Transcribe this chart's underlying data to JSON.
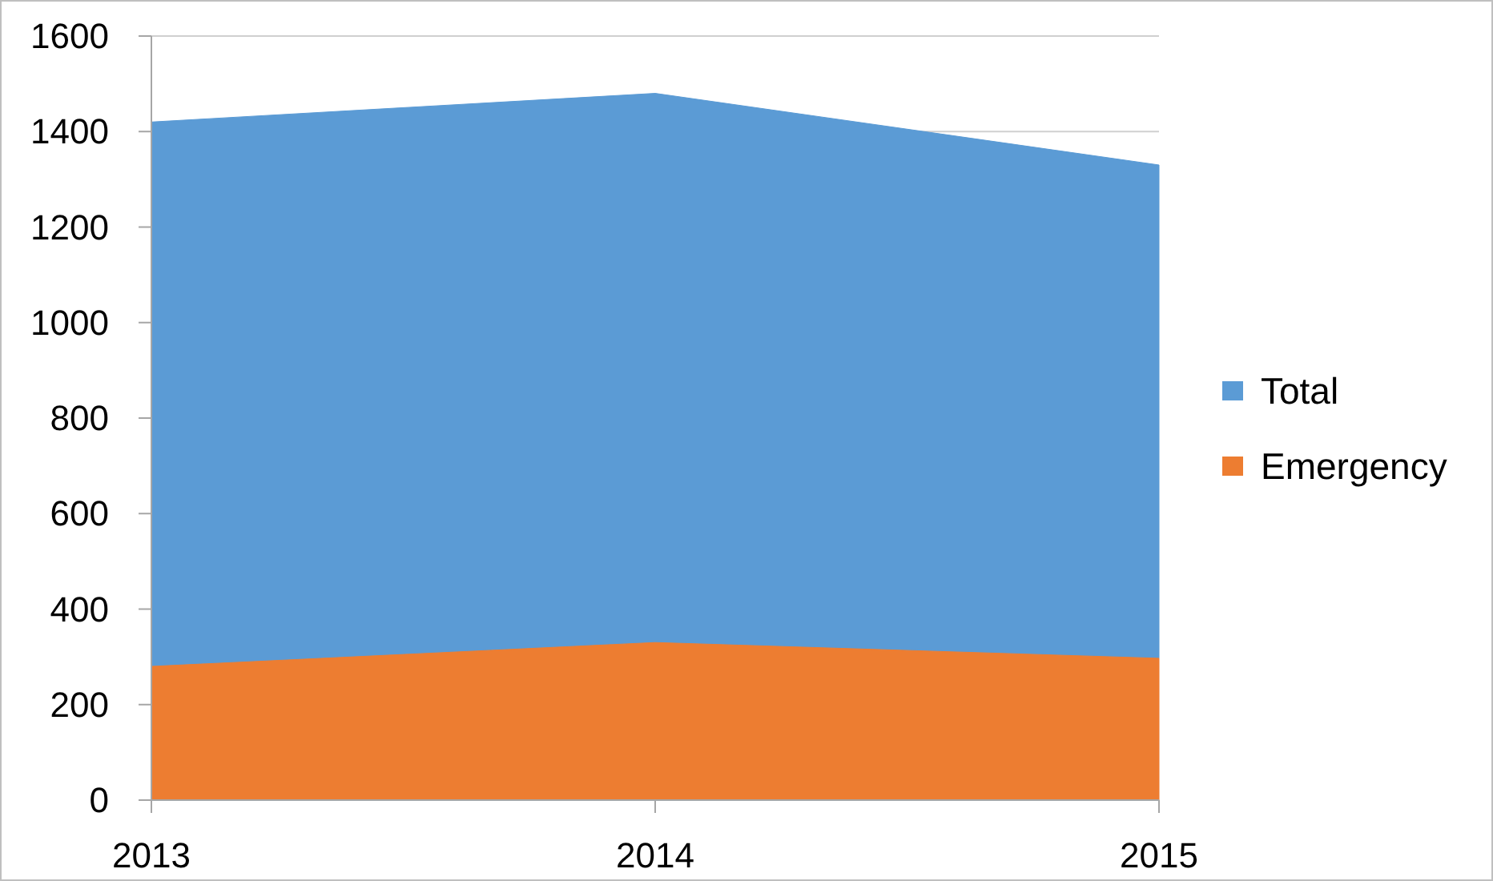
{
  "chart_data": {
    "type": "area",
    "x": [
      2013,
      2014,
      2015
    ],
    "xlim": [
      2013,
      2015
    ],
    "xticks": [
      2013,
      2014,
      2015
    ],
    "ylim": [
      0,
      1600
    ],
    "yticks": [
      0,
      200,
      400,
      600,
      800,
      1000,
      1200,
      1400,
      1600
    ],
    "grid": "y",
    "legend": "right",
    "series": [
      {
        "name": "Total",
        "color": "#5b9bd5",
        "values": [
          1420,
          1480,
          1330
        ]
      },
      {
        "name": "Emergency",
        "color": "#ed7d31",
        "values": [
          280,
          330,
          297
        ]
      }
    ]
  }
}
